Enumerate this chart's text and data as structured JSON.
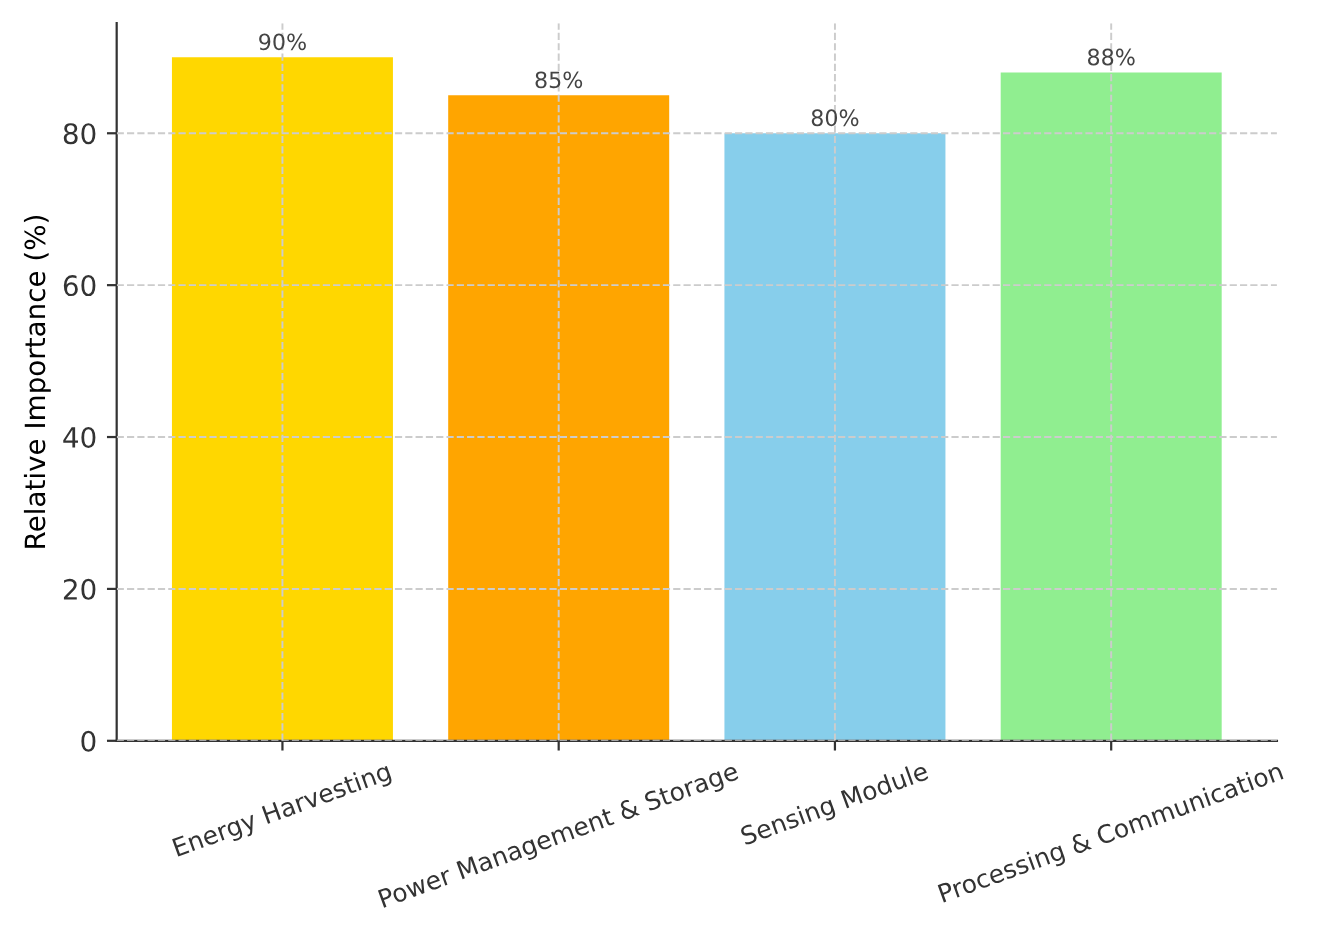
{
  "chart_data": {
    "type": "bar",
    "ylabel": "Relative Importance (%)",
    "categories": [
      "Energy Harvesting",
      "Power Management & Storage",
      "Sensing Module",
      "Processing & Communication"
    ],
    "values": [
      90,
      85,
      80,
      88
    ],
    "colors": [
      "#ffd700",
      "#ffa500",
      "#87ceeb",
      "#90ee90"
    ],
    "value_labels": [
      "90%",
      "85%",
      "80%",
      "88%"
    ],
    "ylim": [
      0,
      94.5
    ],
    "yticks": [
      0,
      20,
      40,
      60,
      80
    ],
    "grid": true
  }
}
